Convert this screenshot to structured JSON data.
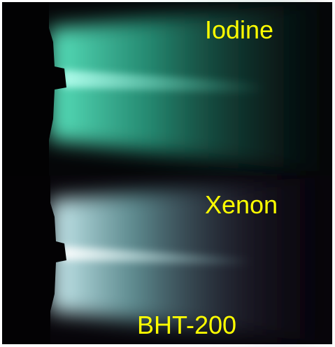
{
  "panels": [
    {
      "label": "Iodine"
    },
    {
      "label": "Xenon"
    }
  ],
  "caption": "BHT-200"
}
